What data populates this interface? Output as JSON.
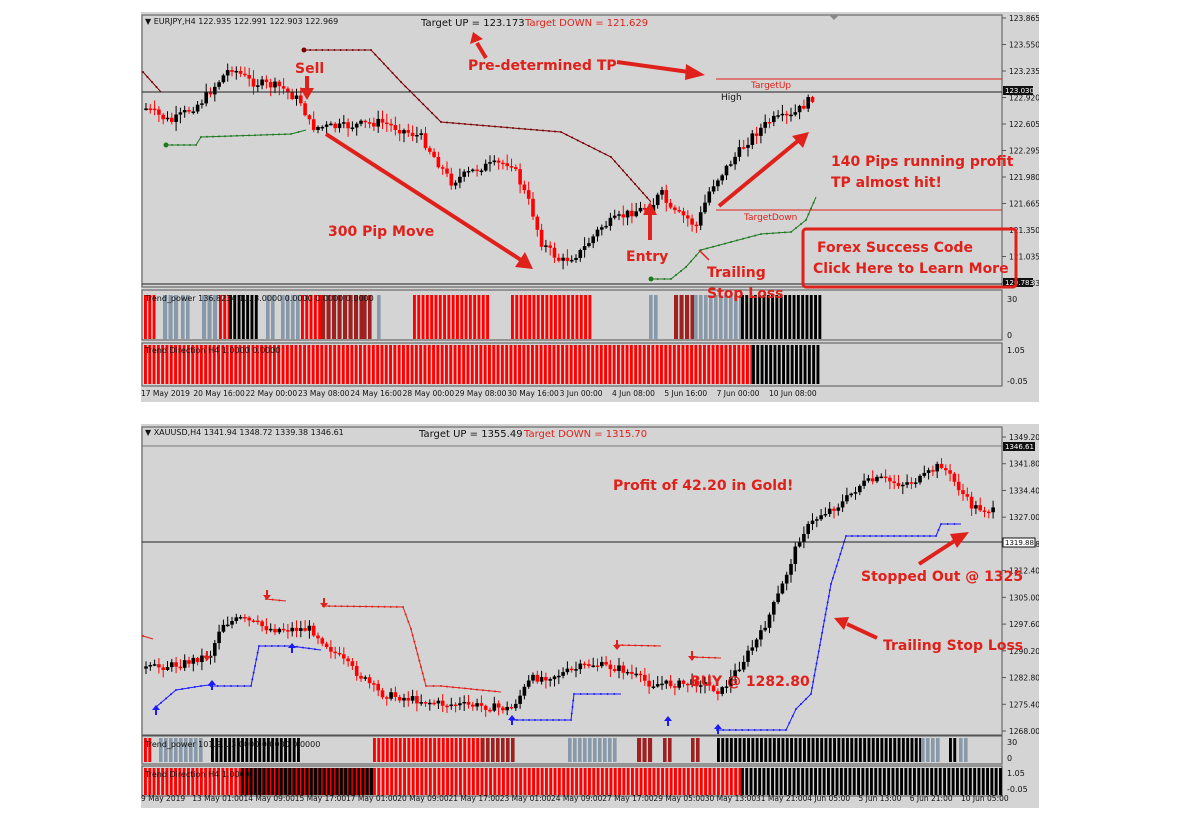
{
  "top": {
    "header": {
      "symbol": "▼ EURJPY,H4  122.935 122.991 122.903 122.969",
      "target_up": "Target UP = 123.173",
      "target_down": "Target DOWN = 121.629"
    },
    "price_axis": [
      "123.865",
      "123.550",
      "123.235",
      "122.920",
      "122.605",
      "122.295",
      "121.980",
      "121.665",
      "121.350",
      "121.035",
      "120.783"
    ],
    "price_tags": {
      "current": "123.030",
      "close": "122.969",
      "low_tag": "120.783"
    },
    "time_axis": [
      "17 May 2019",
      "20 May 16:00",
      "22 May 00:00",
      "23 May 08:00",
      "24 May 16:00",
      "28 May 00:00",
      "29 May 08:00",
      "30 May 16:00",
      "3 Jun 00:00",
      "4 Jun 08:00",
      "5 Jun 16:00",
      "7 Jun 00:00",
      "10 Jun 08:00"
    ],
    "lines": {
      "target_up_label": "TargetUp",
      "target_down_label": "TargetDown",
      "high_label": "High"
    },
    "indicators": {
      "trend_power": "Trend_power 136.8234 1...  3.0000 0.0000 0.0000 0.0000",
      "trend_power_levels": [
        "30",
        "0"
      ],
      "trend_direction": "Trend Direction H4 1.0000 0.0000",
      "trend_direction_levels": [
        "1.05",
        "-0.05"
      ]
    },
    "annotations": {
      "sell": "Sell",
      "pre_tp": "Pre-determined TP",
      "move": "300 Pip Move",
      "entry": "Entry",
      "trailing_1": "Trailing",
      "trailing_2": "Stop Loss",
      "profit_1": "140 Pips running profit",
      "profit_2": "TP almost hit!",
      "cta_1": "Forex Success Code",
      "cta_2": "Click Here to Learn More"
    }
  },
  "bottom": {
    "header": {
      "symbol": "▼ XAUUSD,H4  1341.94 1348.72 1339.38 1346.61",
      "target_up": "Target UP = 1355.49",
      "target_down": "Target DOWN = 1315.70"
    },
    "price_axis": [
      "1349.20",
      "1341.80",
      "1334.40",
      "1327.00",
      "1319.88",
      "1312.40",
      "1305.00",
      "1297.60",
      "1290.20",
      "1282.80",
      "1275.40",
      "1268.00"
    ],
    "price_tags": {
      "current": "1346.61",
      "line": "1319.88"
    },
    "time_axis": [
      "9 May 2019",
      "13 May 01:00",
      "14 May 09:00",
      "15 May 17:00",
      "17 May 01:00",
      "20 May 09:00",
      "21 May 17:00",
      "23 May 01:00",
      "24 May 09:00",
      "27 May 17:00",
      "29 May 05:00",
      "30 May 13:00",
      "31 May 21:00",
      "4 Jun 05:00",
      "5 Jun 13:00",
      "6 Jun 21:00",
      "10 Jun 05:00"
    ],
    "indicators": {
      "trend_power": "Trend_power 101.9...  3.0000 0.0000 0.0000",
      "trend_power_levels": [
        "30",
        "0"
      ],
      "trend_direction": "Trend Direction H4 1.0000",
      "trend_direction_levels": [
        "1.05",
        "-0.05"
      ]
    },
    "annotations": {
      "profit": "Profit of 42.20 in Gold!",
      "stopped": "Stopped Out @ 1325",
      "trailing": "Trailing Stop Loss",
      "buy": "BUY @ 1282.80"
    }
  },
  "colors": {
    "bg": "#d4d4d4",
    "bull": "#000000",
    "bear": "#ff0000",
    "annotation": "#e0201a",
    "trail_up": "#1a1aff",
    "trail_down_top": "#7a0000",
    "trail_green": "#1f7a1f",
    "grey_bar": "#8899aa",
    "dark_red_bar": "#a02020"
  },
  "chart_data": [
    {
      "type": "line",
      "title": "EURJPY,H4",
      "ylim": [
        120.783,
        123.865
      ],
      "x": [
        "17 May 2019",
        "20 May 16:00",
        "22 May 00:00",
        "23 May 08:00",
        "24 May 16:00",
        "28 May 00:00",
        "29 May 08:00",
        "30 May 16:00",
        "3 Jun 00:00",
        "4 Jun 08:00",
        "5 Jun 16:00",
        "7 Jun 00:00",
        "10 Jun 08:00"
      ],
      "series": [
        {
          "name": "",
          "values": [
            122.7,
            122.85,
            123.1,
            122.6,
            122.55,
            122.45,
            122.1,
            121.55,
            120.95,
            121.6,
            121.75,
            122.45,
            122.97
          ]
        }
      ],
      "target_up": 123.173,
      "target_down": 121.629
    },
    {
      "type": "line",
      "title": "XAUUSD,H4",
      "ylim": [
        1268.0,
        1349.2
      ],
      "x": [
        "9 May 2019",
        "13 May 01:00",
        "14 May 09:00",
        "15 May 17:00",
        "17 May 01:00",
        "20 May 09:00",
        "21 May 17:00",
        "23 May 01:00",
        "24 May 09:00",
        "27 May 17:00",
        "29 May 05:00",
        "30 May 13:00",
        "31 May 21:00",
        "4 Jun 05:00",
        "5 Jun 13:00",
        "6 Jun 21:00",
        "10 Jun 05:00"
      ],
      "series": [
        {
          "name": "",
          "values": [
            1285.5,
            1299.0,
            1297.0,
            1296.5,
            1280.0,
            1278.0,
            1275.0,
            1276.5,
            1283.5,
            1284.0,
            1281.5,
            1290.0,
            1306.0,
            1329.5,
            1336.0,
            1341.0,
            1326.5
          ]
        }
      ],
      "target_up": 1355.49,
      "target_down": 1315.7
    }
  ]
}
